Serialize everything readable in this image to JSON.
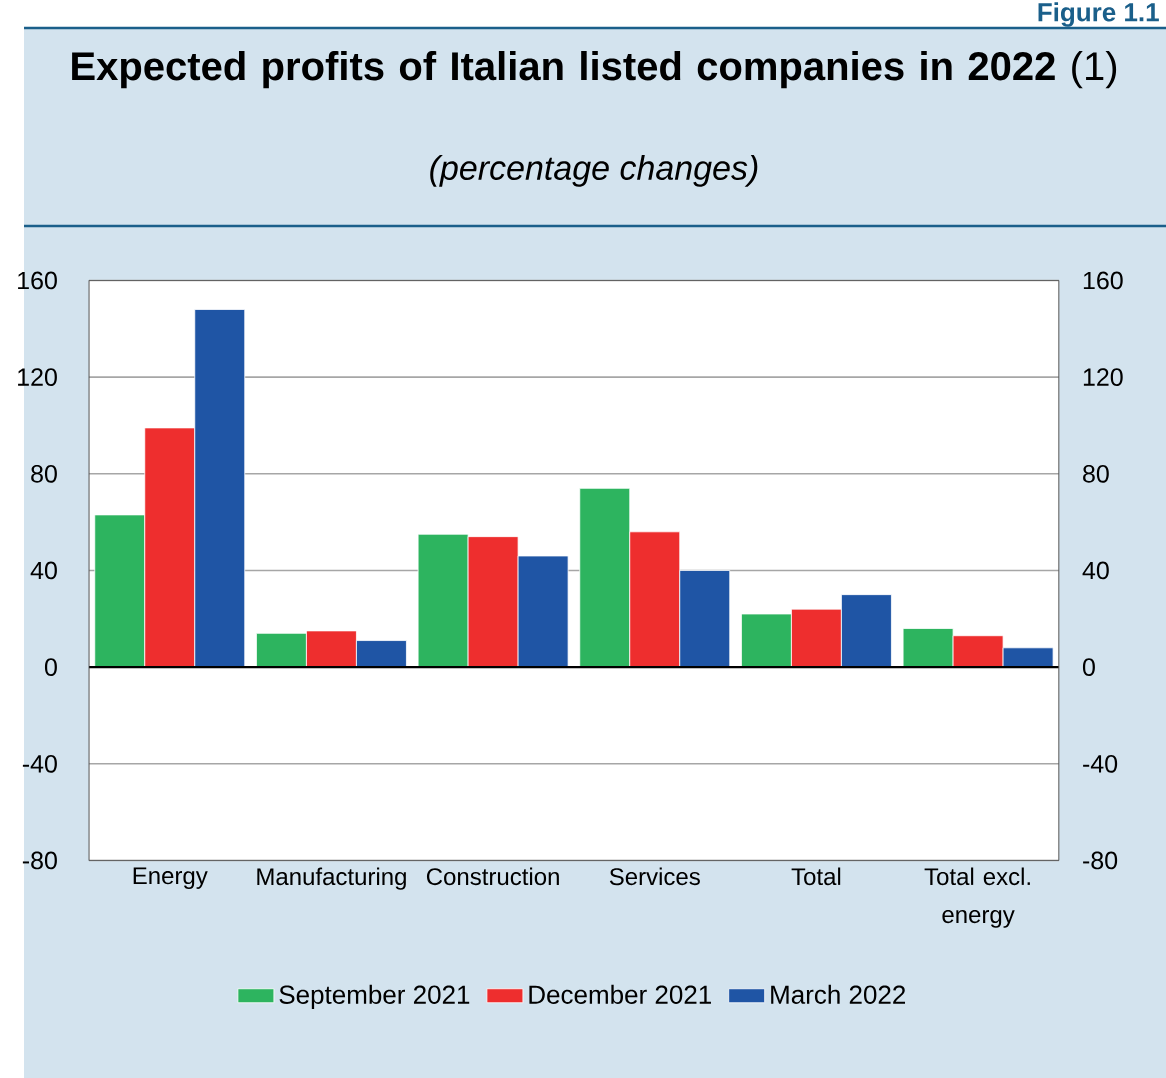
{
  "chart_data": {
    "type": "bar",
    "title": "**Expected profits of Italian listed companies in 2022** (1)",
    "subtitle": "(percentage changes)",
    "annotations": [
      "Figure 1.1"
    ],
    "categories": [
      "Energy",
      "Manufacturing",
      "Construction",
      "Services",
      "Total",
      "Total excl. energy"
    ],
    "series": [
      {
        "name": "September 2021",
        "color": "#2db45f",
        "values": [
          63,
          14,
          55,
          74,
          22,
          16
        ]
      },
      {
        "name": "December 2021",
        "color": "#ee2e2e",
        "values": [
          99,
          15,
          54,
          56,
          24,
          13
        ]
      },
      {
        "name": "March 2022",
        "color": "#1f55a5",
        "values": [
          148,
          11,
          46,
          40,
          30,
          8
        ]
      }
    ],
    "ylim": [
      -80,
      160
    ],
    "yticks": [
      -80,
      -40,
      0,
      40,
      80,
      120,
      160
    ],
    "y2lim": [
      -80,
      160
    ],
    "y2ticks": [
      -80,
      -40,
      0,
      40,
      80,
      120,
      160
    ],
    "grid": "y",
    "legend": "bottom"
  }
}
